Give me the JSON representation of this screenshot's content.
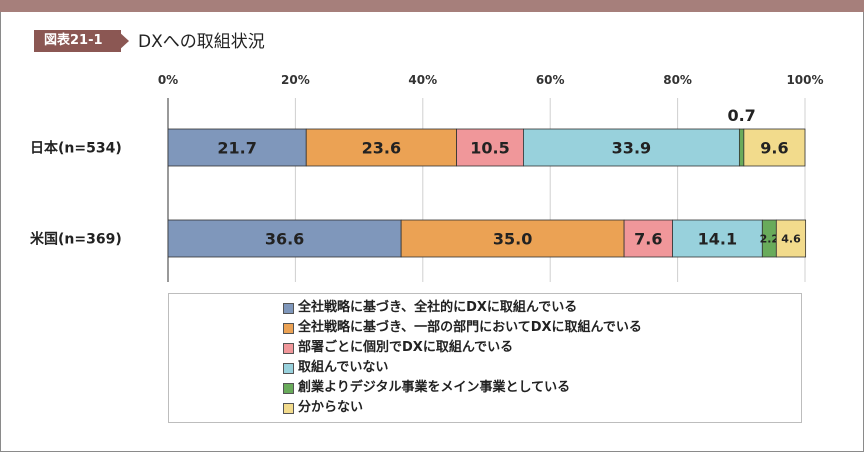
{
  "header": {
    "badge": "図表21-1",
    "title": "DXへの取組状況"
  },
  "chart_data": {
    "type": "bar",
    "orientation": "horizontal-stacked-100",
    "categories": [
      "日本(n=534)",
      "米国(n=369)"
    ],
    "series": [
      {
        "name": "全社戦略に基づき、全社的にDXに取組んでいる",
        "color": "#7f97bb",
        "values": [
          21.7,
          36.6
        ]
      },
      {
        "name": "全社戦略に基づき、一部の部門においてDXに取組んでいる",
        "color": "#eba254",
        "values": [
          23.6,
          35.0
        ]
      },
      {
        "name": "部署ごとに個別でDXに取組んでいる",
        "color": "#f0979a",
        "values": [
          10.5,
          7.6
        ]
      },
      {
        "name": "取組んでいない",
        "color": "#98d1dc",
        "values": [
          33.9,
          14.1
        ]
      },
      {
        "name": "創業よりデジタル事業をメイン事業としている",
        "color": "#69ab5b",
        "values": [
          0.7,
          2.2
        ]
      },
      {
        "name": "分からない",
        "color": "#f2db8c",
        "values": [
          9.6,
          4.6
        ]
      }
    ],
    "xlim": [
      0,
      100
    ],
    "x_ticks": [
      "0%",
      "20%",
      "40%",
      "60%",
      "80%",
      "100%"
    ],
    "grid": true,
    "legend_position": "bottom"
  }
}
